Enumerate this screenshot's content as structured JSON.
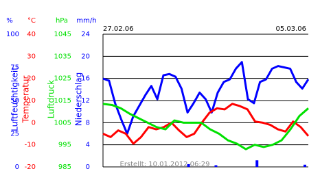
{
  "chart_data": {
    "type": "line",
    "x_labels": [
      "27.02.06",
      "05.03.06"
    ],
    "footer": "Erstellt: 10.01.2012 06:29",
    "grid": true,
    "axes": [
      {
        "unit": "%",
        "label": "Luftfeuchtigkeit",
        "color": "#0000ff",
        "ylim": [
          0,
          100
        ],
        "yticks": [
          0,
          25,
          50,
          75,
          100
        ]
      },
      {
        "unit": "°C",
        "label": "Temperatur",
        "color": "#ff0000",
        "ylim": [
          -20,
          40
        ],
        "yticks": [
          -20,
          -10,
          0,
          10,
          20,
          30,
          40
        ]
      },
      {
        "unit": "hPa",
        "label": "Luftdruck",
        "color": "#00e000",
        "ylim": [
          985,
          1045
        ],
        "yticks": [
          985,
          995,
          1005,
          1015,
          1025,
          1035,
          1045
        ]
      },
      {
        "unit": "mm/h",
        "label": "Niederschlag",
        "color": "#0000ff",
        "ylim": [
          0,
          24
        ],
        "yticks": [
          0,
          4,
          8,
          12,
          16,
          20,
          24
        ]
      }
    ],
    "series": [
      {
        "axis": 0,
        "kind": "line",
        "color": "#0000ff",
        "values": [
          66.5,
          65,
          48,
          36,
          25,
          38,
          46,
          54,
          61,
          51,
          69,
          70,
          68,
          59,
          41,
          48,
          56,
          51,
          41,
          56,
          64,
          66,
          74,
          79,
          51,
          48,
          64,
          66,
          74,
          76,
          75,
          74,
          64,
          59,
          66
        ]
      },
      {
        "axis": 1,
        "kind": "line",
        "color": "#ff0000",
        "values": [
          -5,
          -6.5,
          -3.5,
          -5,
          -9.5,
          -6.5,
          -2,
          -3,
          -2,
          0,
          -3.5,
          -6.5,
          -5,
          0,
          4.5,
          6.5,
          6,
          8.5,
          7.5,
          6,
          0.5,
          0,
          -1,
          -3,
          -4,
          0.5,
          -2,
          -6
        ]
      },
      {
        "axis": 2,
        "kind": "line",
        "color": "#00e000",
        "values": [
          1013.5,
          1013,
          1011.5,
          1009,
          1007,
          1005,
          1003,
          1002,
          1006,
          1005,
          1005,
          1005,
          1002,
          1000,
          997,
          995.5,
          993,
          995,
          994,
          995,
          997,
          1002,
          1008,
          1011.5
        ]
      },
      {
        "axis": 3,
        "kind": "bar",
        "color": "#0000ff",
        "values": [
          0,
          0,
          0,
          0,
          0,
          0,
          0,
          0,
          0,
          0,
          0,
          0,
          0.5,
          0,
          0,
          0,
          0.3,
          0,
          0,
          0,
          0,
          0,
          1.2,
          0,
          0,
          0,
          0,
          0,
          0,
          0.4
        ]
      }
    ]
  }
}
